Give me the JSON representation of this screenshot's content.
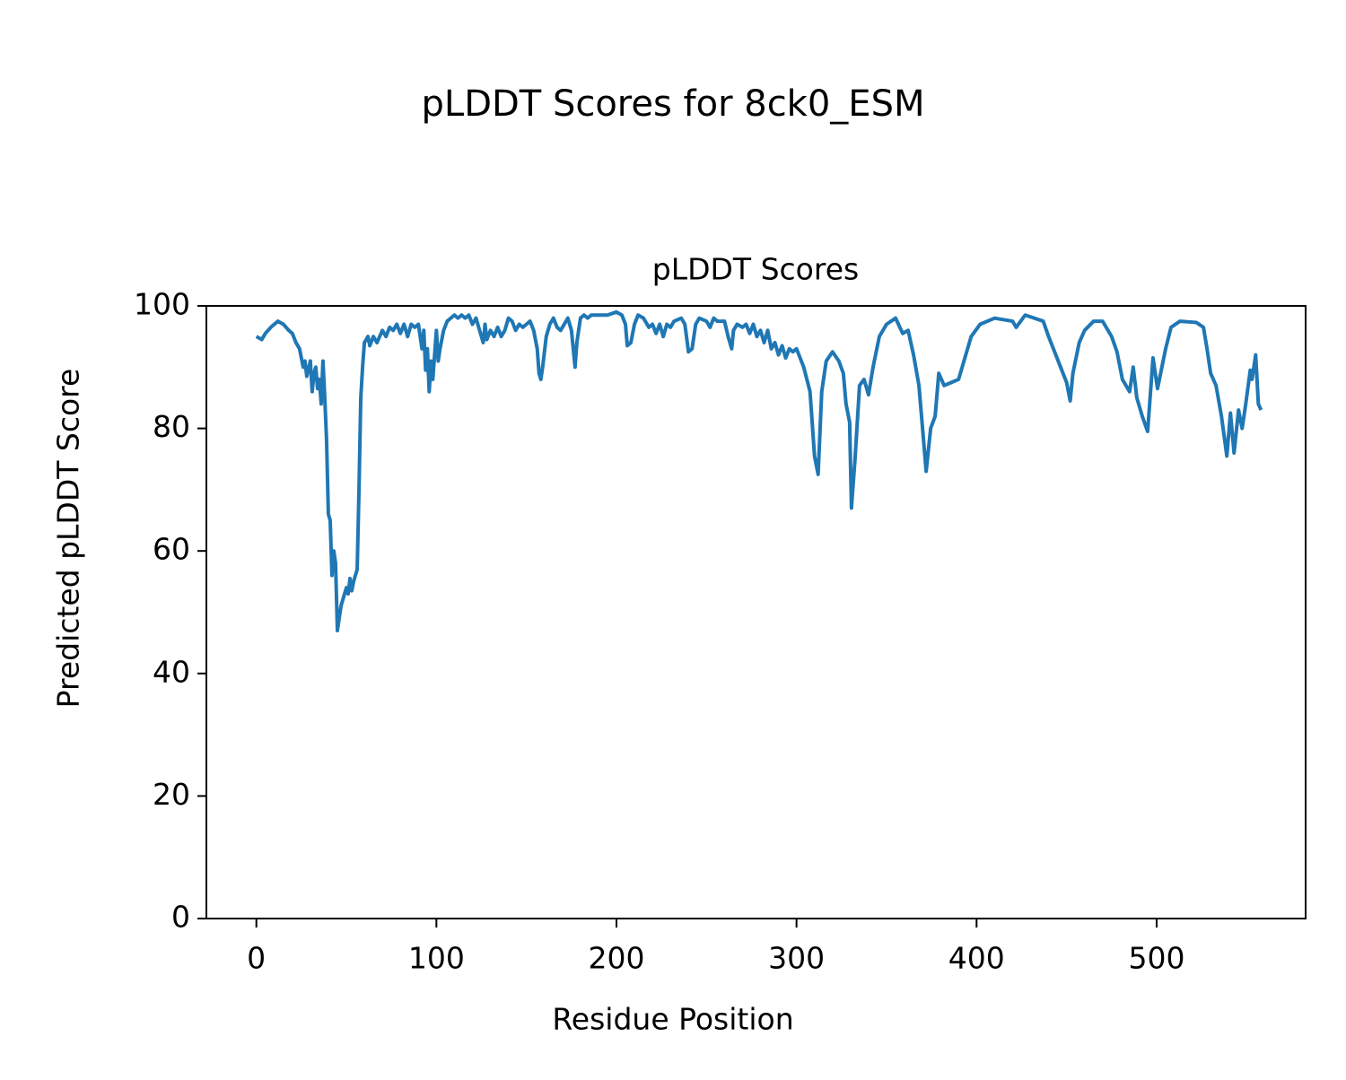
{
  "chart_data": {
    "type": "line",
    "suptitle": "pLDDT Scores for 8ck0_ESM",
    "title": "pLDDT Scores",
    "xlabel": "Residue Position",
    "ylabel": "Predicted pLDDT Score",
    "xlim": [
      -27.75,
      582.75
    ],
    "ylim": [
      0,
      100
    ],
    "xticks": [
      0,
      100,
      200,
      300,
      400,
      500
    ],
    "yticks": [
      0,
      20,
      40,
      60,
      80,
      100
    ],
    "series": [
      {
        "color": "#1f77b4",
        "x": [
          0,
          3,
          5,
          8,
          12,
          15,
          18,
          20,
          22,
          24,
          26,
          27,
          28,
          30,
          31,
          32,
          33,
          34,
          35,
          36,
          37,
          38,
          39,
          40,
          41,
          42,
          43,
          44,
          45,
          46,
          47,
          48,
          50,
          51,
          52,
          53,
          54,
          56,
          57,
          58,
          59,
          60,
          62,
          63,
          65,
          67,
          70,
          72,
          74,
          76,
          78,
          80,
          82,
          84,
          86,
          88,
          90,
          91,
          92,
          93,
          94,
          95,
          96,
          97,
          98,
          100,
          101,
          102,
          104,
          106,
          108,
          110,
          112,
          114,
          116,
          118,
          120,
          122,
          124,
          126,
          127,
          128,
          130,
          132,
          134,
          136,
          138,
          140,
          142,
          144,
          146,
          148,
          150,
          152,
          154,
          156,
          157,
          158,
          159,
          161,
          163,
          165,
          167,
          169,
          171,
          173,
          175,
          176,
          177,
          178,
          180,
          182,
          184,
          186,
          190,
          195,
          200,
          203,
          205,
          206,
          208,
          210,
          212,
          215,
          218,
          220,
          222,
          224,
          226,
          228,
          230,
          232,
          236,
          238,
          240,
          242,
          244,
          246,
          250,
          252,
          254,
          256,
          260,
          262,
          264,
          265,
          267,
          270,
          272,
          274,
          276,
          278,
          280,
          282,
          284,
          286,
          288,
          290,
          292,
          294,
          296,
          298,
          300,
          304,
          307.5,
          310,
          312,
          314,
          316.5,
          320,
          323.5,
          326,
          327.5,
          329.5,
          330.5,
          332.5,
          335,
          337.5,
          340,
          342.5,
          346,
          350,
          355,
          359,
          362,
          365,
          368,
          370,
          372,
          374.5,
          377,
          379,
          382,
          386,
          390,
          393,
          397,
          402,
          410,
          420,
          422,
          427,
          437,
          440,
          444,
          448,
          450,
          452,
          453.5,
          457,
          460,
          465,
          470,
          475,
          478,
          481,
          485,
          487,
          489,
          492,
          495,
          498,
          500.5,
          505,
          508,
          513,
          522,
          526,
          528,
          530,
          533,
          536,
          539,
          541,
          543,
          545.5,
          547.5,
          549.5,
          552,
          553,
          555,
          556.5,
          558
        ],
        "values": [
          95,
          94.5,
          95.5,
          96.5,
          97.5,
          97,
          96,
          95.5,
          94,
          93,
          90,
          91,
          88.5,
          91,
          86,
          89,
          90,
          86.5,
          88,
          84,
          91,
          85,
          78,
          66,
          65,
          56,
          60,
          58,
          47,
          49,
          51,
          52,
          54,
          53,
          55.5,
          53.5,
          55,
          57,
          70,
          85,
          90,
          94,
          95,
          93.5,
          95,
          94,
          96,
          95,
          96.5,
          96,
          97,
          95.5,
          97,
          95,
          97,
          96.5,
          97,
          95,
          93,
          96,
          89.5,
          93,
          86,
          91,
          88,
          96,
          91,
          93,
          96,
          97.5,
          98,
          98.5,
          98,
          98.5,
          98,
          98.5,
          97,
          98,
          96,
          94,
          97,
          94.5,
          96,
          95,
          96.5,
          95,
          96,
          98,
          97.5,
          96,
          97,
          96.5,
          97,
          97.5,
          96,
          93,
          89,
          88,
          90,
          95,
          97,
          98,
          96.5,
          96,
          97,
          98,
          96,
          93,
          90,
          94,
          98,
          98.5,
          98,
          98.5,
          98.5,
          98.5,
          99,
          98.5,
          97,
          93.5,
          94,
          97,
          98.5,
          98,
          96.5,
          97,
          95.5,
          97,
          95,
          97,
          96.5,
          97.5,
          98,
          97,
          92.5,
          93,
          97,
          98,
          97.5,
          96.5,
          98,
          97.5,
          97.5,
          95,
          93,
          96,
          97,
          96.5,
          97,
          95.5,
          97,
          95,
          96,
          94,
          96,
          93,
          94,
          92,
          93.5,
          91.5,
          93,
          92.5,
          93,
          90,
          86,
          75.5,
          72.5,
          86,
          91,
          92.5,
          91,
          89,
          84,
          81,
          67,
          75,
          87,
          88,
          85.5,
          90,
          95,
          97,
          98,
          95.5,
          96,
          92,
          87,
          80,
          73,
          80,
          82,
          89,
          87,
          87.5,
          88,
          91,
          95,
          97,
          98,
          97.5,
          96.5,
          98.5,
          97.5,
          95,
          92,
          89,
          87.5,
          84.5,
          89,
          94,
          96,
          97.5,
          97.5,
          95,
          92.5,
          88,
          86,
          90,
          85,
          82,
          79.5,
          91.5,
          86.5,
          93,
          96.5,
          97.5,
          97.3,
          96.5,
          93,
          89,
          87,
          82,
          75.5,
          82.5,
          76,
          83,
          80,
          84,
          89.5,
          88,
          92,
          84,
          83
        ]
      }
    ]
  }
}
